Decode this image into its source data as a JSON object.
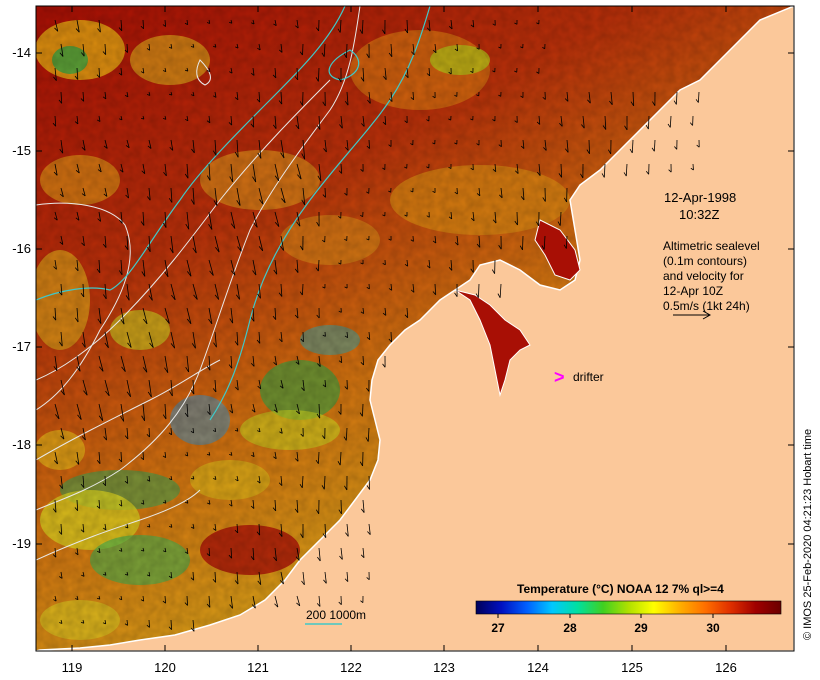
{
  "colors": {
    "land": "#fbc89a",
    "sea_hot": "#a80f05",
    "sea_warm": "#d46a08",
    "sea_mid": "#e6a510",
    "sea_cool": "#c9d41a",
    "sea_cold": "#3aa040",
    "coast": "#ffffff",
    "contour_white": "#e8e8e8",
    "contour_cyan": "#40c8c8",
    "drifter": "#ff00ff",
    "arrow": "#000000"
  },
  "axes": {
    "x_ticks": [
      "119",
      "120",
      "121",
      "122",
      "123",
      "124",
      "125",
      "126"
    ],
    "y_ticks": [
      "-14",
      "-15",
      "-16",
      "-17",
      "-18",
      "-19"
    ]
  },
  "annotations": {
    "date": "12-Apr-1998",
    "time": "10:32Z",
    "legend_lines": [
      "Altimetric sealevel",
      "(0.1m contours)",
      "and velocity for",
      "12-Apr 10Z",
      "0.5m/s (1kt 24h)"
    ],
    "drifter_label": "drifter",
    "drifter_symbol": ">",
    "depth_label": "200  1000m"
  },
  "colorbar": {
    "title": "Temperature (°C) NOAA 12 7% ql>=4",
    "ticks": [
      "27",
      "28",
      "29",
      "30"
    ],
    "stops": [
      "#00005a",
      "#0010c0",
      "#0060ff",
      "#00c8ff",
      "#00e0a0",
      "#40d020",
      "#b0e000",
      "#ffff00",
      "#ffb000",
      "#ff7000",
      "#e03000",
      "#a00000",
      "#6a0000"
    ]
  },
  "credit": "© IMOS 25-Feb-2020 04:21:23 Hobart time"
}
